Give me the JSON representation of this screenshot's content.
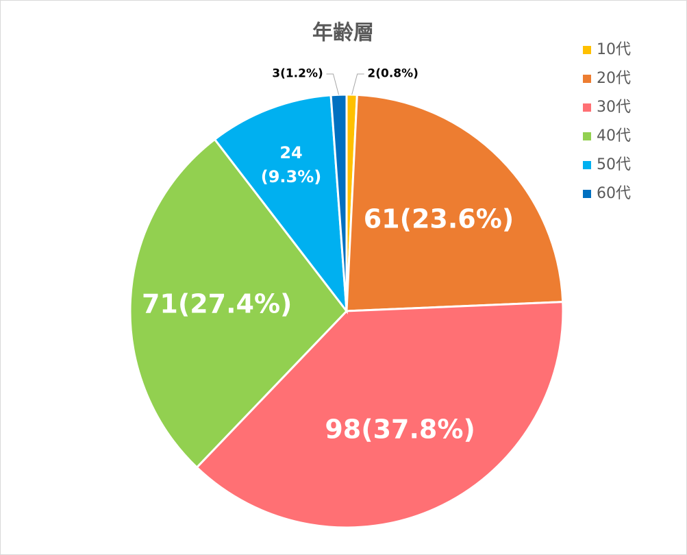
{
  "chart_data": {
    "type": "pie",
    "title": "年齢層",
    "categories": [
      "10代",
      "20代",
      "30代",
      "40代",
      "50代",
      "60代"
    ],
    "values": [
      2,
      61,
      98,
      71,
      24,
      3
    ],
    "value_labels": [
      "2(0.8%)",
      "61(23.6%)",
      "98(37.8%)",
      "71(27.4%)",
      "24\n(9.3%)",
      "3(1.2%)"
    ],
    "colors": [
      "#FFC000",
      "#ED7D31",
      "#FF7074",
      "#92D050",
      "#00B0F0",
      "#0070C0"
    ],
    "legend": "right"
  }
}
